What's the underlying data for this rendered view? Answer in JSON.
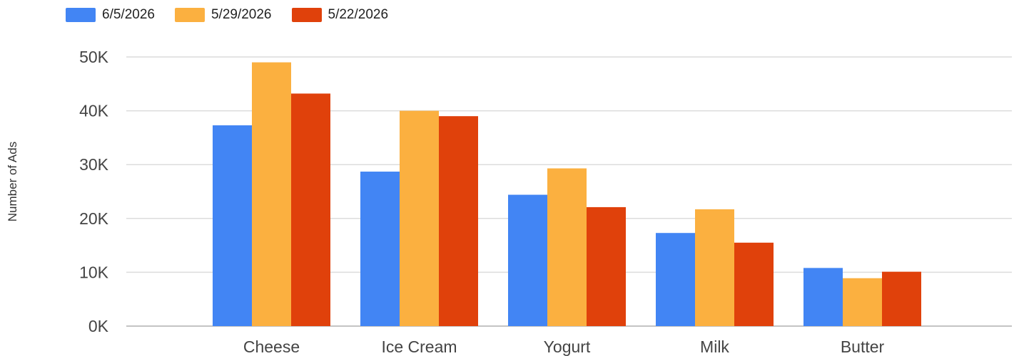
{
  "chart_data": {
    "type": "bar",
    "title": "",
    "xlabel": "",
    "ylabel": "Number of Ads",
    "categories": [
      "Cheese",
      "Ice Cream",
      "Yogurt",
      "Milk",
      "Butter"
    ],
    "series": [
      {
        "name": "6/5/2026",
        "color": "#4285f4",
        "values": [
          37300,
          28700,
          24400,
          17300,
          10800
        ]
      },
      {
        "name": "5/29/2026",
        "color": "#fbb040",
        "values": [
          49000,
          40000,
          29300,
          21700,
          8900
        ]
      },
      {
        "name": "5/22/2026",
        "color": "#e0410b",
        "values": [
          43200,
          39000,
          22100,
          15500,
          10100
        ]
      }
    ],
    "ylim": [
      0,
      50000
    ],
    "yticks": [
      0,
      10000,
      20000,
      30000,
      40000,
      50000
    ],
    "ytick_labels": [
      "0K",
      "10K",
      "20K",
      "30K",
      "40K",
      "50K"
    ],
    "grid": true,
    "legend_position": "top-left"
  }
}
